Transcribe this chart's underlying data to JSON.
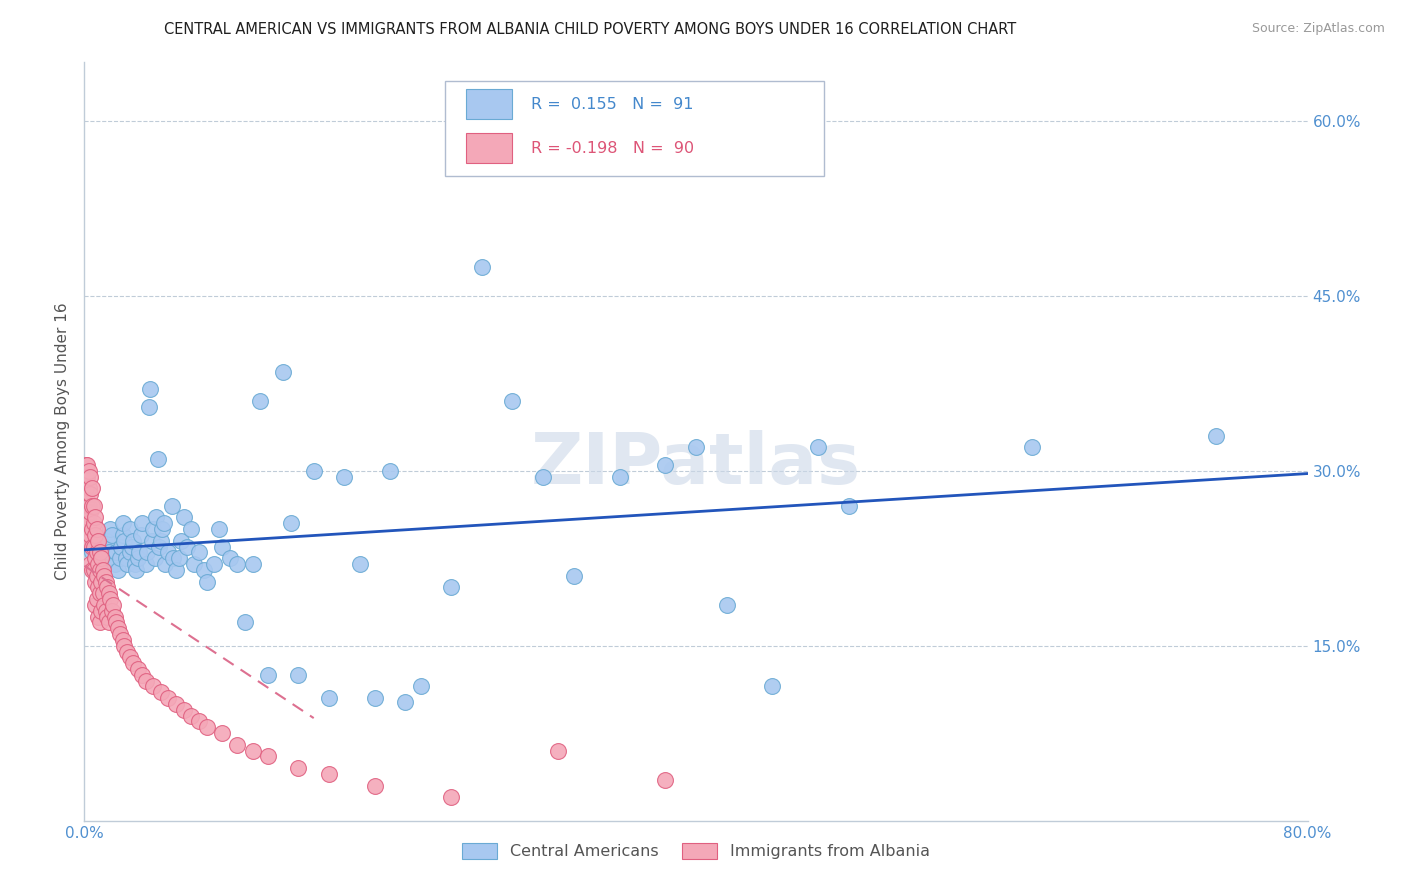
{
  "title": "CENTRAL AMERICAN VS IMMIGRANTS FROM ALBANIA CHILD POVERTY AMONG BOYS UNDER 16 CORRELATION CHART",
  "source": "Source: ZipAtlas.com",
  "ylabel": "Child Poverty Among Boys Under 16",
  "right_ytick_labels": [
    "60.0%",
    "45.0%",
    "30.0%",
    "15.0%"
  ],
  "right_ytick_values": [
    0.6,
    0.45,
    0.3,
    0.15
  ],
  "xlim": [
    0.0,
    0.8
  ],
  "ylim": [
    0.0,
    0.65
  ],
  "blue_R": 0.155,
  "blue_N": 91,
  "pink_R": -0.198,
  "pink_N": 90,
  "blue_color": "#a8c8f0",
  "blue_edge": "#6aaad4",
  "pink_color": "#f4a8b8",
  "pink_edge": "#e06080",
  "blue_line_color": "#2255bb",
  "pink_line_color": "#dd7090",
  "watermark": "ZIPatlas",
  "legend_label_blue": "Central Americans",
  "legend_label_pink": "Immigrants from Albania",
  "blue_x": [
    0.005,
    0.008,
    0.01,
    0.012,
    0.013,
    0.015,
    0.015,
    0.016,
    0.017,
    0.018,
    0.02,
    0.021,
    0.022,
    0.023,
    0.024,
    0.025,
    0.025,
    0.026,
    0.027,
    0.028,
    0.03,
    0.03,
    0.031,
    0.032,
    0.033,
    0.034,
    0.035,
    0.036,
    0.037,
    0.038,
    0.04,
    0.041,
    0.042,
    0.043,
    0.044,
    0.045,
    0.046,
    0.047,
    0.048,
    0.049,
    0.05,
    0.051,
    0.052,
    0.053,
    0.055,
    0.057,
    0.058,
    0.06,
    0.062,
    0.063,
    0.065,
    0.067,
    0.07,
    0.072,
    0.075,
    0.078,
    0.08,
    0.085,
    0.088,
    0.09,
    0.095,
    0.1,
    0.105,
    0.11,
    0.115,
    0.12,
    0.13,
    0.135,
    0.14,
    0.15,
    0.16,
    0.17,
    0.18,
    0.19,
    0.2,
    0.21,
    0.22,
    0.24,
    0.26,
    0.28,
    0.3,
    0.32,
    0.35,
    0.38,
    0.4,
    0.42,
    0.45,
    0.48,
    0.5,
    0.62,
    0.74
  ],
  "blue_y": [
    0.23,
    0.225,
    0.24,
    0.22,
    0.235,
    0.225,
    0.24,
    0.23,
    0.25,
    0.245,
    0.22,
    0.23,
    0.215,
    0.225,
    0.235,
    0.245,
    0.255,
    0.24,
    0.225,
    0.22,
    0.23,
    0.25,
    0.235,
    0.24,
    0.22,
    0.215,
    0.225,
    0.23,
    0.245,
    0.255,
    0.22,
    0.23,
    0.355,
    0.37,
    0.24,
    0.25,
    0.225,
    0.26,
    0.31,
    0.235,
    0.24,
    0.25,
    0.255,
    0.22,
    0.23,
    0.27,
    0.225,
    0.215,
    0.225,
    0.24,
    0.26,
    0.235,
    0.25,
    0.22,
    0.23,
    0.215,
    0.205,
    0.22,
    0.25,
    0.235,
    0.225,
    0.22,
    0.17,
    0.22,
    0.36,
    0.125,
    0.385,
    0.255,
    0.125,
    0.3,
    0.105,
    0.295,
    0.22,
    0.105,
    0.3,
    0.102,
    0.115,
    0.2,
    0.475,
    0.36,
    0.295,
    0.21,
    0.295,
    0.305,
    0.32,
    0.185,
    0.115,
    0.32,
    0.27,
    0.32,
    0.33
  ],
  "pink_x": [
    0.001,
    0.001,
    0.001,
    0.002,
    0.002,
    0.002,
    0.002,
    0.002,
    0.003,
    0.003,
    0.003,
    0.003,
    0.003,
    0.004,
    0.004,
    0.004,
    0.004,
    0.004,
    0.005,
    0.005,
    0.005,
    0.005,
    0.005,
    0.006,
    0.006,
    0.006,
    0.006,
    0.007,
    0.007,
    0.007,
    0.007,
    0.007,
    0.008,
    0.008,
    0.008,
    0.008,
    0.009,
    0.009,
    0.009,
    0.009,
    0.01,
    0.01,
    0.01,
    0.01,
    0.011,
    0.011,
    0.011,
    0.012,
    0.012,
    0.013,
    0.013,
    0.014,
    0.014,
    0.015,
    0.015,
    0.016,
    0.016,
    0.017,
    0.018,
    0.019,
    0.02,
    0.021,
    0.022,
    0.023,
    0.025,
    0.026,
    0.028,
    0.03,
    0.032,
    0.035,
    0.038,
    0.04,
    0.045,
    0.05,
    0.055,
    0.06,
    0.065,
    0.07,
    0.075,
    0.08,
    0.09,
    0.1,
    0.11,
    0.12,
    0.14,
    0.16,
    0.19,
    0.24,
    0.31,
    0.38
  ],
  "pink_y": [
    0.305,
    0.295,
    0.285,
    0.305,
    0.295,
    0.275,
    0.26,
    0.245,
    0.3,
    0.285,
    0.27,
    0.255,
    0.24,
    0.295,
    0.28,
    0.265,
    0.245,
    0.22,
    0.285,
    0.27,
    0.25,
    0.235,
    0.215,
    0.27,
    0.255,
    0.235,
    0.215,
    0.26,
    0.245,
    0.225,
    0.205,
    0.185,
    0.25,
    0.23,
    0.21,
    0.19,
    0.24,
    0.22,
    0.2,
    0.175,
    0.23,
    0.215,
    0.195,
    0.17,
    0.225,
    0.205,
    0.18,
    0.215,
    0.195,
    0.21,
    0.185,
    0.205,
    0.18,
    0.2,
    0.175,
    0.195,
    0.17,
    0.19,
    0.18,
    0.185,
    0.175,
    0.17,
    0.165,
    0.16,
    0.155,
    0.15,
    0.145,
    0.14,
    0.135,
    0.13,
    0.125,
    0.12,
    0.115,
    0.11,
    0.105,
    0.1,
    0.095,
    0.09,
    0.085,
    0.08,
    0.075,
    0.065,
    0.06,
    0.055,
    0.045,
    0.04,
    0.03,
    0.02,
    0.06,
    0.035
  ]
}
